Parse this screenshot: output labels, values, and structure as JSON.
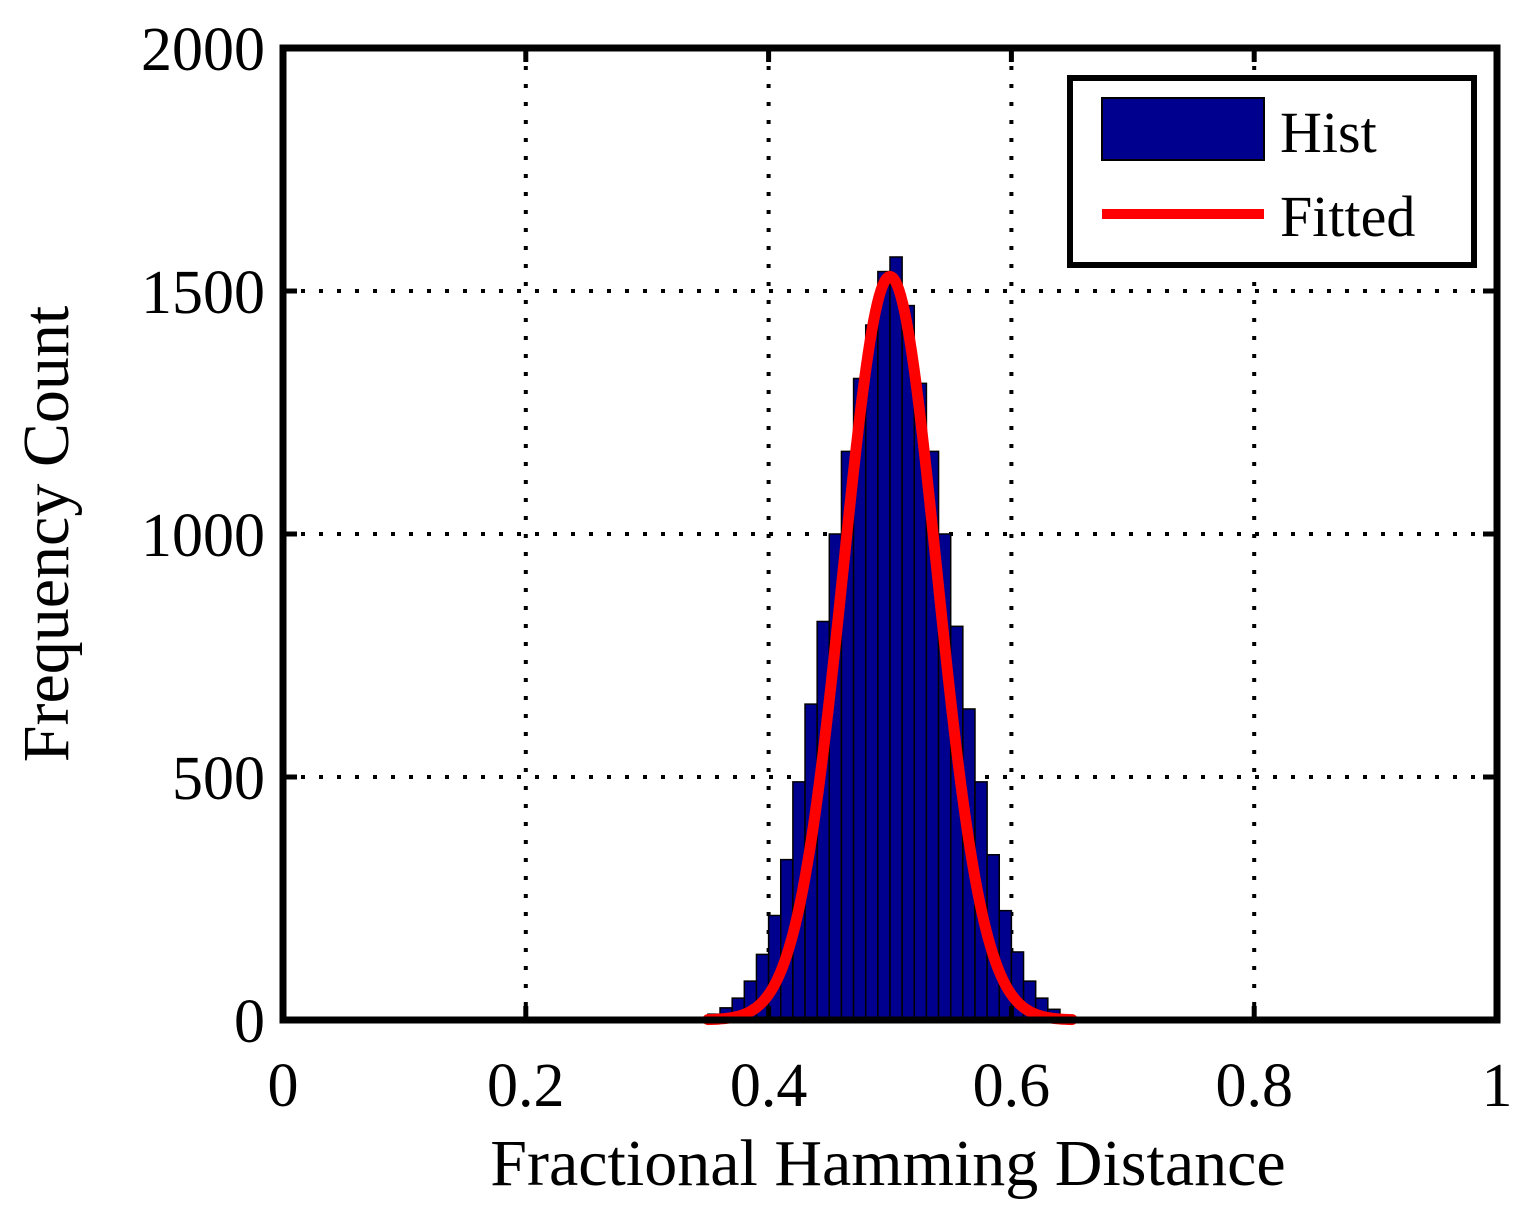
{
  "chart_data": {
    "type": "bar",
    "title": "",
    "xlabel": "Fractional Hamming Distance",
    "ylabel": "Frequency Count",
    "xlim": [
      0,
      1
    ],
    "ylim": [
      0,
      2000
    ],
    "grid": true,
    "legend_position": "top-right",
    "x_ticks": [
      "0",
      "0.2",
      "0.4",
      "0.6",
      "0.8",
      "1"
    ],
    "y_ticks": [
      "0",
      "500",
      "1000",
      "1500",
      "2000"
    ],
    "colors": {
      "hist": "#00008f",
      "fitted": "#ff0000",
      "axes": "#000000"
    },
    "series": [
      {
        "name": "Hist",
        "kind": "histogram",
        "bin_width": 0.01,
        "x": [
          0.345,
          0.355,
          0.365,
          0.375,
          0.385,
          0.395,
          0.405,
          0.415,
          0.425,
          0.435,
          0.445,
          0.455,
          0.465,
          0.475,
          0.485,
          0.495,
          0.505,
          0.515,
          0.525,
          0.535,
          0.545,
          0.555,
          0.565,
          0.575,
          0.585,
          0.595,
          0.605,
          0.615,
          0.625,
          0.635,
          0.645,
          0.655
        ],
        "values": [
          4,
          12,
          25,
          45,
          80,
          135,
          215,
          330,
          490,
          650,
          820,
          1000,
          1170,
          1320,
          1430,
          1540,
          1570,
          1470,
          1310,
          1170,
          1000,
          810,
          640,
          490,
          340,
          225,
          140,
          80,
          45,
          22,
          10,
          5
        ]
      },
      {
        "name": "Fitted",
        "kind": "normal-fit",
        "mean": 0.5,
        "std": 0.0385,
        "peak": 1530,
        "x_range": [
          0.35,
          0.65
        ]
      }
    ]
  }
}
